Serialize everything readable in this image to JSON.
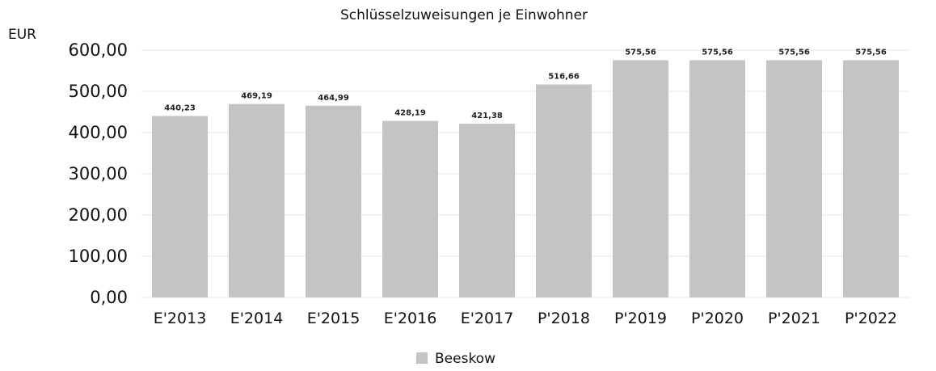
{
  "chart_data": {
    "type": "bar",
    "title": "Schlüsselzuweisungen je Einwohner",
    "ylabel": "EUR",
    "xlabel": "",
    "categories": [
      "E'2013",
      "E'2014",
      "E'2015",
      "E'2016",
      "E'2017",
      "P'2018",
      "P'2019",
      "P'2020",
      "P'2021",
      "P'2022"
    ],
    "series": [
      {
        "name": "Beeskow",
        "values": [
          440.23,
          469.19,
          464.99,
          428.19,
          421.38,
          516.66,
          575.56,
          575.56,
          575.56,
          575.56
        ],
        "labels": [
          "440,23",
          "469,19",
          "464,99",
          "428,19",
          "421,38",
          "516,66",
          "575,56",
          "575,56",
          "575,56",
          "575,56"
        ],
        "color": "#c4c4c4"
      }
    ],
    "y_ticks": [
      "0,00",
      "100,00",
      "200,00",
      "300,00",
      "400,00",
      "500,00",
      "600,00"
    ],
    "y_tick_values": [
      0,
      100,
      200,
      300,
      400,
      500,
      600
    ],
    "ylim": [
      0,
      600
    ],
    "grid": true,
    "legend_position": "bottom",
    "colors": {
      "bar": "#c4c4c4",
      "grid": "#e6e6e6",
      "text": "#111111"
    }
  }
}
